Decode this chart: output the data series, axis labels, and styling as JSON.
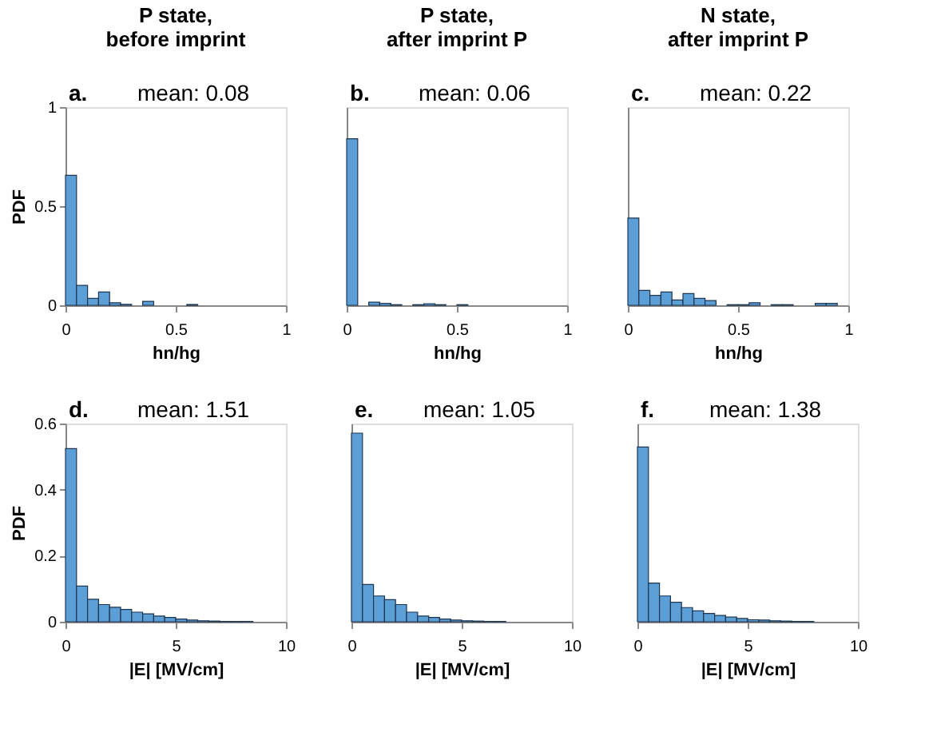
{
  "chart_data": [
    {
      "type": "histogram",
      "title": "P state,\nbefore imprint",
      "annotations": [
        "a.",
        "mean: 0.08"
      ],
      "ylabel": "PDF",
      "xlabel": "hn/hg",
      "color": "#5b9fd6",
      "grid": false,
      "bins": [
        0,
        0.05,
        0.1,
        0.15,
        0.2,
        0.25,
        0.3,
        0.35,
        0.4,
        0.45,
        0.5,
        0.55,
        0.6,
        0.65,
        0.7,
        0.75,
        0.8,
        0.85,
        0.9,
        0.95,
        1
      ],
      "values": [
        0.656,
        0.1,
        0.035,
        0.067,
        0.013,
        0.005,
        0,
        0.02,
        0,
        0,
        0,
        0.004,
        0,
        0,
        0,
        0,
        0,
        0,
        0,
        0
      ],
      "xlim": [
        0,
        1
      ],
      "xticks": [
        0,
        0.5,
        1
      ],
      "ylim": [
        0,
        1
      ],
      "yticks": [
        0,
        0.5,
        1
      ]
    },
    {
      "type": "histogram",
      "title": "P state,\nafter imprint P",
      "annotations": [
        "b.",
        "mean: 0.06"
      ],
      "xlabel": "hn/hg",
      "color": "#5b9fd6",
      "grid": false,
      "tick_labels": "x",
      "bins": [
        0,
        0.05,
        0.1,
        0.15,
        0.2,
        0.25,
        0.3,
        0.35,
        0.4,
        0.45,
        0.5,
        0.55,
        0.6,
        0.65,
        0.7,
        0.75,
        0.8,
        0.85,
        0.9,
        0.95,
        1
      ],
      "values": [
        0.84,
        0,
        0.016,
        0.01,
        0.003,
        0,
        0.003,
        0.008,
        0.003,
        0,
        0.003,
        0,
        0,
        0,
        0,
        0,
        0,
        0,
        0,
        0
      ],
      "xlim": [
        0,
        1
      ],
      "xticks": [
        0,
        0.5,
        1
      ],
      "ylim": [
        0,
        1
      ],
      "yticks": [
        0,
        0.5,
        1
      ]
    },
    {
      "type": "histogram",
      "title": "N state,\nafter imprint P",
      "annotations": [
        "c.",
        "mean: 0.22"
      ],
      "xlabel": "hn/hg",
      "color": "#5b9fd6",
      "grid": false,
      "tick_labels": "x",
      "bins": [
        0,
        0.05,
        0.1,
        0.15,
        0.2,
        0.25,
        0.3,
        0.35,
        0.4,
        0.45,
        0.5,
        0.55,
        0.6,
        0.65,
        0.7,
        0.75,
        0.8,
        0.85,
        0.9,
        0.95,
        1
      ],
      "values": [
        0.44,
        0.075,
        0.05,
        0.067,
        0.027,
        0.059,
        0.035,
        0.024,
        0,
        0.003,
        0.003,
        0.013,
        0,
        0.003,
        0.003,
        0,
        0,
        0.01,
        0.01,
        0
      ],
      "xlim": [
        0,
        1
      ],
      "xticks": [
        0,
        0.5,
        1
      ],
      "ylim": [
        0,
        1
      ],
      "yticks": [
        0,
        0.5,
        1
      ]
    },
    {
      "type": "histogram",
      "annotations": [
        "d.",
        "mean: 1.51"
      ],
      "ylabel": "PDF",
      "xlabel": "|E| [MV/cm]",
      "color": "#5b9fd6",
      "grid": false,
      "bins": [
        0,
        0.5,
        1,
        1.5,
        2,
        2.5,
        3,
        3.5,
        4,
        4.5,
        5,
        5.5,
        6,
        6.5,
        7,
        7.5,
        8,
        8.5,
        9,
        9.5,
        10
      ],
      "values": [
        0.524,
        0.108,
        0.068,
        0.052,
        0.044,
        0.037,
        0.029,
        0.024,
        0.017,
        0.013,
        0.008,
        0.005,
        0.003,
        0.002,
        0.001,
        0.001,
        0.001,
        0,
        0,
        0
      ],
      "xlim": [
        0,
        10
      ],
      "xticks": [
        0,
        5,
        10
      ],
      "ylim": [
        0,
        0.6
      ],
      "yticks": [
        0,
        0.2,
        0.4,
        0.6
      ]
    },
    {
      "type": "histogram",
      "annotations": [
        "e.",
        "mean: 1.05"
      ],
      "xlabel": "|E| [MV/cm]",
      "color": "#5b9fd6",
      "grid": false,
      "tick_labels": "x",
      "bins": [
        0,
        0.5,
        1,
        1.5,
        2,
        2.5,
        3,
        3.5,
        4,
        4.5,
        5,
        5.5,
        6,
        6.5,
        7,
        7.5,
        8,
        8.5,
        9,
        9.5,
        10
      ],
      "values": [
        0.571,
        0.113,
        0.078,
        0.067,
        0.052,
        0.029,
        0.017,
        0.013,
        0.008,
        0.005,
        0.003,
        0.002,
        0.001,
        0.001,
        0,
        0,
        0,
        0,
        0,
        0
      ],
      "xlim": [
        0,
        10
      ],
      "xticks": [
        0,
        5,
        10
      ],
      "ylim": [
        0,
        0.6
      ],
      "yticks": [
        0,
        0.2,
        0.4,
        0.6
      ]
    },
    {
      "type": "histogram",
      "annotations": [
        "f.",
        "mean: 1.38"
      ],
      "xlabel": "|E| [MV/cm]",
      "color": "#5b9fd6",
      "grid": false,
      "tick_labels": "x",
      "bins": [
        0,
        0.5,
        1,
        1.5,
        2,
        2.5,
        3,
        3.5,
        4,
        4.5,
        5,
        5.5,
        6,
        6.5,
        7,
        7.5,
        8,
        8.5,
        9,
        9.5,
        10
      ],
      "values": [
        0.529,
        0.117,
        0.078,
        0.059,
        0.043,
        0.033,
        0.025,
        0.019,
        0.014,
        0.01,
        0.006,
        0.005,
        0.003,
        0.002,
        0.001,
        0.001,
        0,
        0,
        0,
        0
      ],
      "xlim": [
        0,
        10
      ],
      "xticks": [
        0,
        5,
        10
      ],
      "ylim": [
        0,
        0.6
      ],
      "yticks": [
        0,
        0.2,
        0.4,
        0.6
      ]
    }
  ]
}
